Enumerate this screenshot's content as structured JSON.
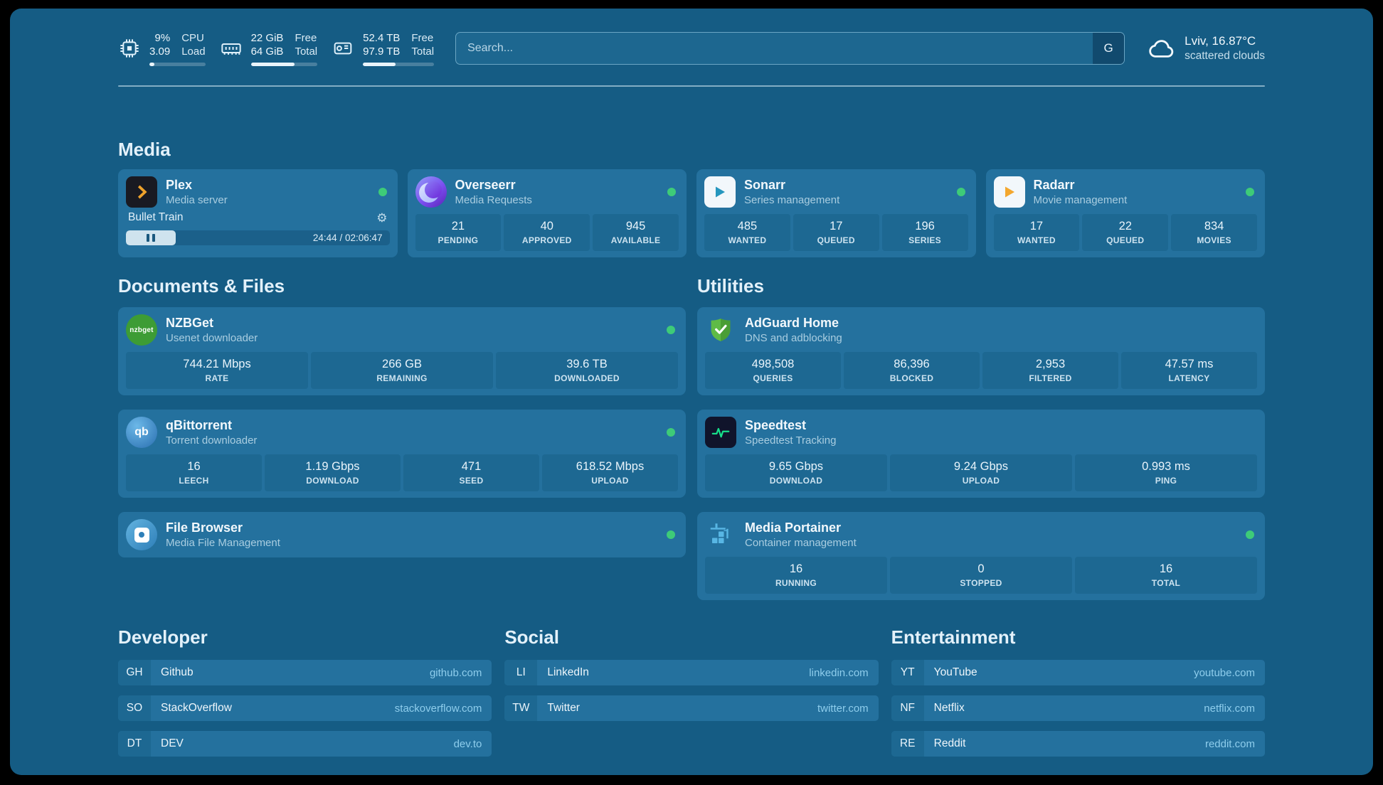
{
  "colors": {
    "background": "#155c84",
    "card": "#24719e",
    "stat_box": "#1d6892",
    "status_online": "#3ecb78",
    "link_text": "#8ecdec"
  },
  "icons": {
    "settings_gear": "⚙",
    "nzbget_tile_text": "nzbget",
    "qbittorrent_tile_text": "qb"
  },
  "header": {
    "cpu": {
      "percent": "9%",
      "load": "3.09",
      "label_top": "CPU",
      "label_bottom": "Load",
      "bar_percent": 9
    },
    "memory": {
      "free": "22 GiB",
      "total": "64 GiB",
      "label_top": "Free",
      "label_bottom": "Total",
      "bar_percent": 66
    },
    "disk": {
      "free": "52.4 TB",
      "total": "97.9 TB",
      "label_top": "Free",
      "label_bottom": "Total",
      "bar_percent": 46
    },
    "search": {
      "placeholder": "Search...",
      "button": "G"
    },
    "weather": {
      "location": "Lviv, 16.87°C",
      "condition": "scattered clouds"
    }
  },
  "media": {
    "title": "Media",
    "plex": {
      "name": "Plex",
      "desc": "Media server",
      "now_playing": "Bullet Train",
      "time": "24:44 / 02:06:47",
      "progress_percent": 19
    },
    "overseerr": {
      "name": "Overseerr",
      "desc": "Media Requests",
      "stats": [
        {
          "value": "21",
          "label": "PENDING"
        },
        {
          "value": "40",
          "label": "APPROVED"
        },
        {
          "value": "945",
          "label": "AVAILABLE"
        }
      ]
    },
    "sonarr": {
      "name": "Sonarr",
      "desc": "Series management",
      "stats": [
        {
          "value": "485",
          "label": "WANTED"
        },
        {
          "value": "17",
          "label": "QUEUED"
        },
        {
          "value": "196",
          "label": "SERIES"
        }
      ]
    },
    "radarr": {
      "name": "Radarr",
      "desc": "Movie management",
      "stats": [
        {
          "value": "17",
          "label": "WANTED"
        },
        {
          "value": "22",
          "label": "QUEUED"
        },
        {
          "value": "834",
          "label": "MOVIES"
        }
      ]
    }
  },
  "documents": {
    "title": "Documents & Files",
    "nzbget": {
      "name": "NZBGet",
      "desc": "Usenet downloader",
      "stats": [
        {
          "value": "744.21 Mbps",
          "label": "RATE"
        },
        {
          "value": "266 GB",
          "label": "REMAINING"
        },
        {
          "value": "39.6 TB",
          "label": "DOWNLOADED"
        }
      ]
    },
    "qbittorrent": {
      "name": "qBittorrent",
      "desc": "Torrent downloader",
      "stats": [
        {
          "value": "16",
          "label": "LEECH"
        },
        {
          "value": "1.19 Gbps",
          "label": "DOWNLOAD"
        },
        {
          "value": "471",
          "label": "SEED"
        },
        {
          "value": "618.52 Mbps",
          "label": "UPLOAD"
        }
      ]
    },
    "filebrowser": {
      "name": "File Browser",
      "desc": "Media File Management"
    }
  },
  "utilities": {
    "title": "Utilities",
    "adguard": {
      "name": "AdGuard Home",
      "desc": "DNS and adblocking",
      "stats": [
        {
          "value": "498,508",
          "label": "QUERIES"
        },
        {
          "value": "86,396",
          "label": "BLOCKED"
        },
        {
          "value": "2,953",
          "label": "FILTERED"
        },
        {
          "value": "47.57 ms",
          "label": "LATENCY"
        }
      ]
    },
    "speedtest": {
      "name": "Speedtest",
      "desc": "Speedtest Tracking",
      "stats": [
        {
          "value": "9.65 Gbps",
          "label": "DOWNLOAD"
        },
        {
          "value": "9.24 Gbps",
          "label": "UPLOAD"
        },
        {
          "value": "0.993 ms",
          "label": "PING"
        }
      ]
    },
    "portainer": {
      "name": "Media Portainer",
      "desc": "Container management",
      "stats": [
        {
          "value": "16",
          "label": "RUNNING"
        },
        {
          "value": "0",
          "label": "STOPPED"
        },
        {
          "value": "16",
          "label": "TOTAL"
        }
      ]
    }
  },
  "bookmarks": {
    "developer": {
      "title": "Developer",
      "items": [
        {
          "abbr": "GH",
          "name": "Github",
          "url": "github.com"
        },
        {
          "abbr": "SO",
          "name": "StackOverflow",
          "url": "stackoverflow.com"
        },
        {
          "abbr": "DT",
          "name": "DEV",
          "url": "dev.to"
        }
      ]
    },
    "social": {
      "title": "Social",
      "items": [
        {
          "abbr": "LI",
          "name": "LinkedIn",
          "url": "linkedin.com"
        },
        {
          "abbr": "TW",
          "name": "Twitter",
          "url": "twitter.com"
        }
      ]
    },
    "entertainment": {
      "title": "Entertainment",
      "items": [
        {
          "abbr": "YT",
          "name": "YouTube",
          "url": "youtube.com"
        },
        {
          "abbr": "NF",
          "name": "Netflix",
          "url": "netflix.com"
        },
        {
          "abbr": "RE",
          "name": "Reddit",
          "url": "reddit.com"
        }
      ]
    }
  }
}
